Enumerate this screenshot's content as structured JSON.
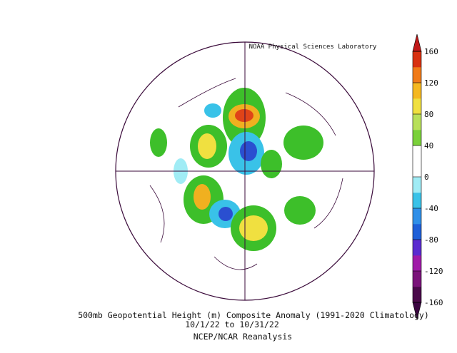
{
  "header": {
    "credit": "NOAA Physical Sciences Laboratory"
  },
  "colorbar": {
    "ticks": [
      160,
      120,
      80,
      40,
      0,
      -40,
      -80,
      -120,
      -160
    ],
    "colors": [
      "#4a0a4a",
      "#7a137a",
      "#a01aa8",
      "#5a2bd0",
      "#1e5fd8",
      "#2f8fe8",
      "#39c2e8",
      "#a0ecf5",
      "#ffffff",
      "#ffffff",
      "#7ad13a",
      "#b8e05a",
      "#f0e040",
      "#f5b820",
      "#f07a18",
      "#d83010"
    ],
    "top_color": "#c01818",
    "bottom_color": "#3a0540"
  },
  "caption": {
    "line1": "500mb Geopotential Height (m) Composite Anomaly (1991-2020 Climatology)",
    "line2": "10/1/22  to 10/31/22",
    "line3": "NCEP/NCAR Reanalysis"
  }
}
